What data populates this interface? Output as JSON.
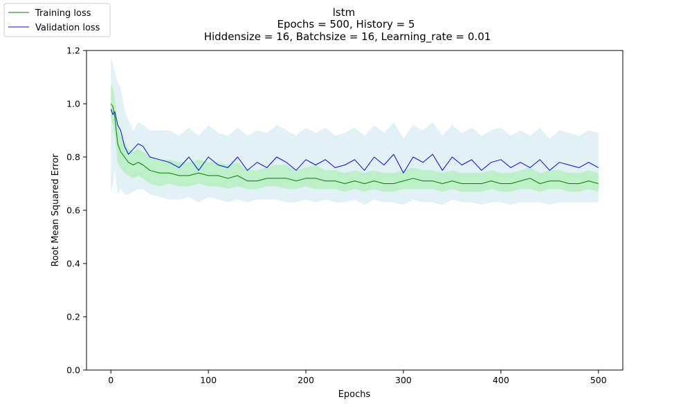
{
  "chart_data": {
    "type": "line",
    "title_lines": [
      "lstm",
      "Epochs = 500, History = 5",
      "Hiddensize = 16, Batchsize = 16, Learning_rate = 0.01"
    ],
    "xlabel": "Epochs",
    "ylabel": "Root Mean Squared Error",
    "xlim": [
      -25,
      525
    ],
    "ylim": [
      0,
      1.2
    ],
    "xticks": [
      0,
      100,
      200,
      300,
      400,
      500
    ],
    "yticks": [
      0.0,
      0.2,
      0.4,
      0.6,
      0.8,
      1.0,
      1.2
    ],
    "ytick_labels": [
      "0.0",
      "0.2",
      "0.4",
      "0.6",
      "0.8",
      "1.0",
      "1.2"
    ],
    "grid": false,
    "legend_position": "top-left (outside axes)",
    "x": [
      0,
      2,
      4,
      7,
      10,
      14,
      18,
      23,
      28,
      33,
      40,
      50,
      60,
      70,
      80,
      90,
      100,
      110,
      120,
      130,
      140,
      150,
      160,
      170,
      180,
      190,
      200,
      210,
      220,
      230,
      240,
      250,
      260,
      270,
      280,
      290,
      300,
      310,
      320,
      330,
      340,
      350,
      360,
      370,
      380,
      390,
      400,
      410,
      420,
      430,
      440,
      450,
      460,
      470,
      480,
      490,
      500
    ],
    "series": [
      {
        "name": "Training loss",
        "color": "#008000",
        "band_color": "#90ee90",
        "values": [
          1.0,
          0.99,
          0.95,
          0.85,
          0.82,
          0.8,
          0.78,
          0.77,
          0.78,
          0.77,
          0.75,
          0.74,
          0.74,
          0.73,
          0.73,
          0.74,
          0.73,
          0.73,
          0.72,
          0.73,
          0.71,
          0.71,
          0.72,
          0.72,
          0.72,
          0.71,
          0.72,
          0.72,
          0.71,
          0.71,
          0.7,
          0.71,
          0.7,
          0.71,
          0.7,
          0.7,
          0.71,
          0.72,
          0.71,
          0.71,
          0.7,
          0.71,
          0.7,
          0.7,
          0.7,
          0.71,
          0.7,
          0.7,
          0.71,
          0.72,
          0.7,
          0.71,
          0.71,
          0.7,
          0.7,
          0.71,
          0.7
        ],
        "lower": [
          0.95,
          0.92,
          0.88,
          0.78,
          0.76,
          0.74,
          0.73,
          0.72,
          0.73,
          0.72,
          0.7,
          0.69,
          0.7,
          0.69,
          0.69,
          0.7,
          0.69,
          0.69,
          0.68,
          0.69,
          0.68,
          0.68,
          0.69,
          0.69,
          0.68,
          0.68,
          0.69,
          0.68,
          0.68,
          0.68,
          0.67,
          0.68,
          0.67,
          0.68,
          0.67,
          0.67,
          0.68,
          0.68,
          0.68,
          0.68,
          0.67,
          0.68,
          0.67,
          0.67,
          0.67,
          0.68,
          0.67,
          0.67,
          0.68,
          0.68,
          0.67,
          0.68,
          0.68,
          0.67,
          0.67,
          0.68,
          0.67
        ],
        "upper": [
          1.07,
          1.06,
          1.02,
          0.92,
          0.88,
          0.86,
          0.83,
          0.82,
          0.83,
          0.82,
          0.8,
          0.79,
          0.79,
          0.78,
          0.78,
          0.79,
          0.78,
          0.78,
          0.77,
          0.78,
          0.75,
          0.75,
          0.76,
          0.77,
          0.77,
          0.75,
          0.76,
          0.77,
          0.75,
          0.75,
          0.74,
          0.75,
          0.74,
          0.75,
          0.74,
          0.74,
          0.75,
          0.76,
          0.75,
          0.75,
          0.74,
          0.75,
          0.74,
          0.74,
          0.74,
          0.75,
          0.74,
          0.74,
          0.75,
          0.76,
          0.74,
          0.75,
          0.75,
          0.74,
          0.74,
          0.75,
          0.74
        ]
      },
      {
        "name": "Validation loss",
        "color": "#0000ff",
        "band_color": "#add8e6",
        "values": [
          0.98,
          0.96,
          0.97,
          0.92,
          0.9,
          0.84,
          0.81,
          0.83,
          0.85,
          0.84,
          0.8,
          0.79,
          0.78,
          0.76,
          0.8,
          0.75,
          0.8,
          0.77,
          0.76,
          0.8,
          0.75,
          0.78,
          0.76,
          0.8,
          0.78,
          0.75,
          0.79,
          0.77,
          0.79,
          0.76,
          0.77,
          0.79,
          0.75,
          0.8,
          0.77,
          0.81,
          0.74,
          0.8,
          0.78,
          0.81,
          0.75,
          0.8,
          0.77,
          0.79,
          0.75,
          0.78,
          0.79,
          0.76,
          0.78,
          0.76,
          0.79,
          0.75,
          0.78,
          0.77,
          0.76,
          0.78,
          0.76
        ],
        "lower": [
          0.66,
          0.7,
          0.75,
          0.66,
          0.68,
          0.66,
          0.66,
          0.67,
          0.68,
          0.68,
          0.66,
          0.65,
          0.64,
          0.64,
          0.65,
          0.63,
          0.65,
          0.64,
          0.63,
          0.64,
          0.63,
          0.64,
          0.64,
          0.64,
          0.63,
          0.63,
          0.64,
          0.63,
          0.64,
          0.63,
          0.63,
          0.64,
          0.62,
          0.64,
          0.63,
          0.63,
          0.62,
          0.64,
          0.63,
          0.63,
          0.62,
          0.64,
          0.63,
          0.63,
          0.62,
          0.63,
          0.63,
          0.62,
          0.63,
          0.63,
          0.63,
          0.62,
          0.63,
          0.63,
          0.63,
          0.63,
          0.63
        ],
        "upper": [
          1.17,
          1.15,
          1.12,
          1.08,
          1.06,
          0.98,
          0.94,
          0.9,
          0.93,
          0.92,
          0.9,
          0.9,
          0.9,
          0.88,
          0.91,
          0.88,
          0.92,
          0.89,
          0.88,
          0.91,
          0.88,
          0.9,
          0.89,
          0.92,
          0.9,
          0.88,
          0.91,
          0.89,
          0.91,
          0.88,
          0.89,
          0.91,
          0.88,
          0.92,
          0.89,
          0.93,
          0.87,
          0.92,
          0.9,
          0.93,
          0.88,
          0.92,
          0.89,
          0.91,
          0.88,
          0.9,
          0.91,
          0.88,
          0.9,
          0.88,
          0.91,
          0.87,
          0.9,
          0.89,
          0.88,
          0.9,
          0.89
        ]
      }
    ]
  }
}
